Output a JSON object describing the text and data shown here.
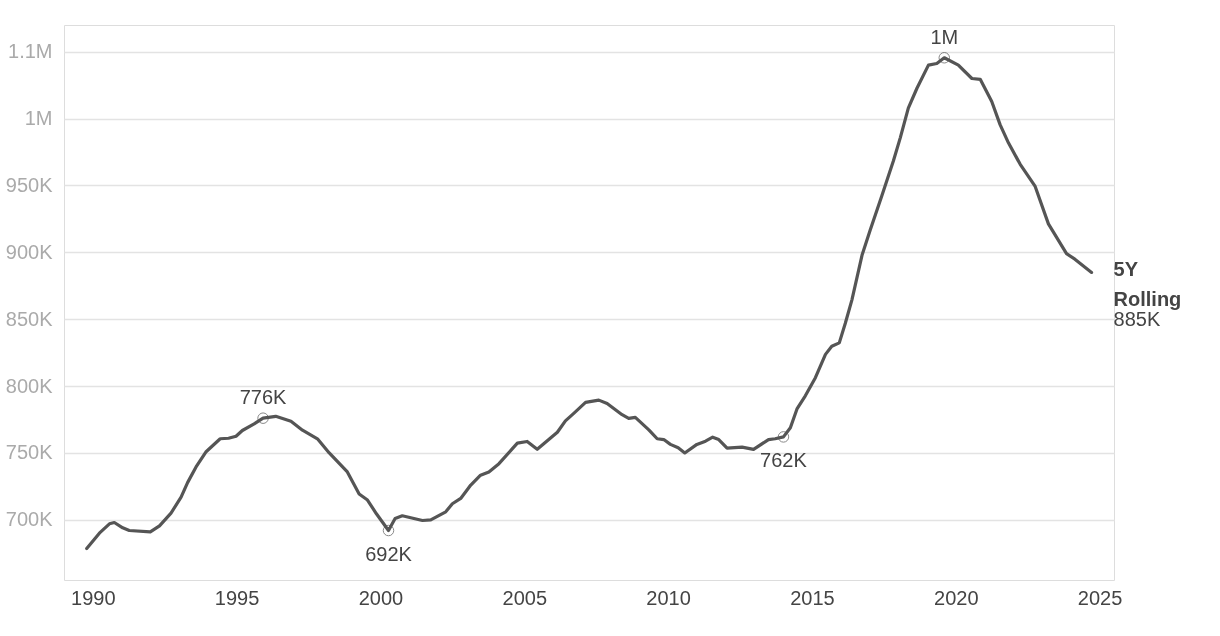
{
  "chart_data": {
    "type": "line",
    "x": [
      1989.79,
      1990.23,
      1990.58,
      1990.75,
      1991.04,
      1991.27,
      1992.0,
      1992.32,
      1992.72,
      1993.07,
      1993.3,
      1993.59,
      1993.93,
      1994.43,
      1994.72,
      1994.98,
      1995.2,
      1995.61,
      1995.92,
      1996.36,
      1996.89,
      1997.29,
      1997.81,
      1998.22,
      1998.85,
      1999.26,
      1999.55,
      1999.86,
      2000.28,
      2000.51,
      2000.76,
      2001.46,
      2001.75,
      2002.27,
      2002.5,
      2002.79,
      2003.14,
      2003.48,
      2003.77,
      2004.12,
      2004.58,
      2004.76,
      2005.1,
      2005.45,
      2006.15,
      2006.43,
      2006.72,
      2007.13,
      2007.59,
      2007.88,
      2008.4,
      2008.63,
      2008.86,
      2009.33,
      2009.62,
      2009.85,
      2010.08,
      2010.35,
      2010.58,
      2011.0,
      2011.3,
      2011.55,
      2011.76,
      2012.05,
      2012.57,
      2012.97,
      2013.49,
      2013.72,
      2014.01,
      2014.25,
      2014.48,
      2014.77,
      2015.12,
      2015.47,
      2015.69,
      2015.95,
      2016.16,
      2016.39,
      2016.74,
      2017.02,
      2017.43,
      2017.83,
      2018.07,
      2018.35,
      2018.65,
      2019.05,
      2019.34,
      2019.6,
      2020.09,
      2020.56,
      2020.85,
      2021.25,
      2021.54,
      2021.83,
      2022.24,
      2022.76,
      2023.22,
      2023.85,
      2024.14,
      2024.72
    ],
    "series": [
      {
        "name": "5Y Rolling",
        "color": "#555555",
        "values": [
          678500,
          690000,
          697000,
          698000,
          694000,
          692000,
          691000,
          695500,
          705000,
          717000,
          728000,
          739500,
          750700,
          760600,
          761000,
          762500,
          766800,
          771700,
          776000,
          777400,
          773700,
          767000,
          760600,
          750000,
          735800,
          719300,
          714800,
          704500,
          692000,
          701000,
          703000,
          699500,
          700000,
          706000,
          712000,
          716000,
          726000,
          733400,
          735800,
          742000,
          753000,
          757300,
          758600,
          752700,
          765500,
          774000,
          779600,
          787800,
          789500,
          787000,
          778600,
          775900,
          776600,
          767300,
          760600,
          760000,
          756400,
          753900,
          750000,
          756400,
          758800,
          761800,
          760000,
          753600,
          754400,
          752700,
          760000,
          760600,
          762000,
          768800,
          782900,
          792700,
          806300,
          823700,
          829800,
          832300,
          847000,
          864500,
          897800,
          916400,
          942400,
          968300,
          985600,
          1007900,
          1022700,
          1040000,
          1041200,
          1045500,
          1040000,
          1030000,
          1029400,
          1012800,
          995500,
          981900,
          965800,
          949300,
          921300,
          899000,
          894900,
          885000
        ]
      }
    ],
    "xlim": [
      1989,
      2025.5
    ],
    "xticks": [
      1990,
      1995,
      2000,
      2005,
      2010,
      2015,
      2020,
      2025
    ],
    "ylim": [
      655000,
      1070000
    ],
    "yticks": [
      {
        "value": 700000,
        "label": "700K"
      },
      {
        "value": 750000,
        "label": "750K"
      },
      {
        "value": 800000,
        "label": "800K"
      },
      {
        "value": 850000,
        "label": "850K"
      },
      {
        "value": 900000,
        "label": "900K"
      },
      {
        "value": 950000,
        "label": "950K"
      },
      {
        "value": 1000000,
        "label": "1M"
      },
      {
        "value": 1050000,
        "label": "1.1M"
      }
    ],
    "grid": "y",
    "legend": false,
    "marker": "none",
    "line_style": "solid",
    "annotations": [
      {
        "text": "776K",
        "x": 1995.92,
        "y": 776000
      },
      {
        "text": "692K",
        "x": 2000.28,
        "y": 692000
      },
      {
        "text": "762K",
        "x": 2014.01,
        "y": 762000
      },
      {
        "text": "1M",
        "x": 2019.6,
        "y": 1045500
      },
      {
        "text": "885K",
        "x": 2024.72,
        "y": 885000
      }
    ]
  }
}
